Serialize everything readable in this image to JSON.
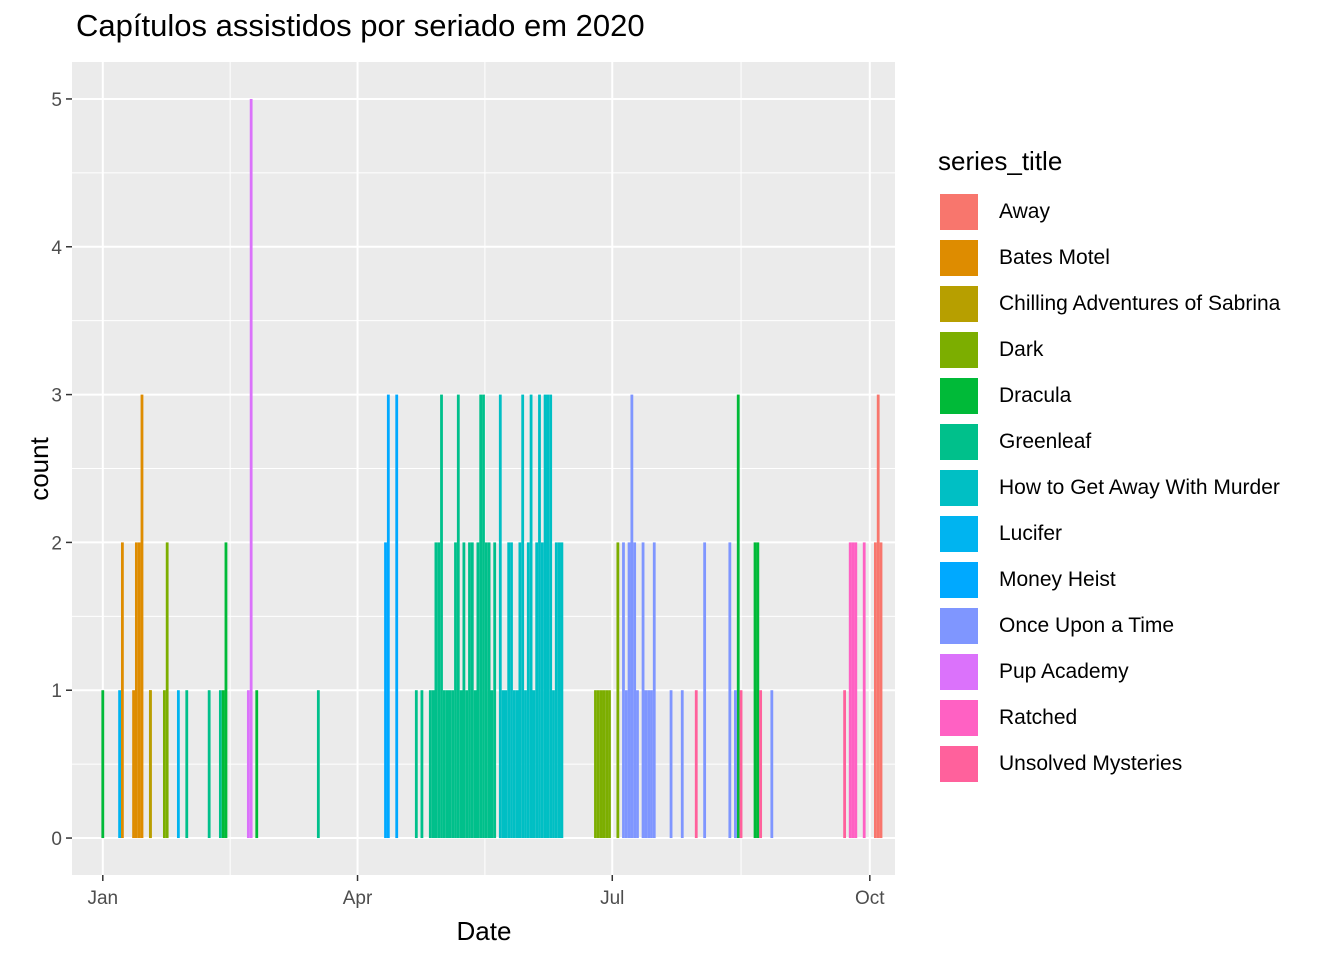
{
  "chart_data": {
    "type": "bar",
    "title": "Capítulos assistidos por seriado em 2020",
    "xlabel": "Date",
    "ylabel": "count",
    "legend_title": "series_title",
    "legend_position": "right",
    "grid": true,
    "xlim": [
      "2019-12-21",
      "2020-10-10"
    ],
    "ylim": [
      -0.25,
      5.25
    ],
    "x_ticks": [
      {
        "date": "2020-01-01",
        "label": "Jan"
      },
      {
        "date": "2020-04-01",
        "label": "Apr"
      },
      {
        "date": "2020-07-01",
        "label": "Jul"
      },
      {
        "date": "2020-10-01",
        "label": "Oct"
      }
    ],
    "y_ticks": [
      0,
      1,
      2,
      3,
      4,
      5
    ],
    "series": [
      {
        "name": "Away",
        "color": "#F8766D",
        "points": [
          [
            "2020-10-03",
            2
          ],
          [
            "2020-10-04",
            3
          ],
          [
            "2020-10-05",
            2
          ]
        ]
      },
      {
        "name": "Bates Motel",
        "color": "#DE8C00",
        "points": [
          [
            "2020-01-08",
            2
          ],
          [
            "2020-01-12",
            1
          ],
          [
            "2020-01-13",
            2
          ],
          [
            "2020-01-14",
            2
          ],
          [
            "2020-01-15",
            3
          ],
          [
            "2020-01-18",
            1
          ]
        ]
      },
      {
        "name": "Chilling Adventures of Sabrina",
        "color": "#B79F00",
        "points": [
          [
            "2020-01-18",
            1
          ]
        ]
      },
      {
        "name": "Dark",
        "color": "#7CAE00",
        "points": [
          [
            "2020-01-23",
            1
          ],
          [
            "2020-01-24",
            2
          ],
          [
            "2020-06-25",
            1
          ],
          [
            "2020-06-26",
            1
          ],
          [
            "2020-06-27",
            1
          ],
          [
            "2020-06-28",
            1
          ],
          [
            "2020-06-29",
            1
          ],
          [
            "2020-06-30",
            1
          ],
          [
            "2020-07-03",
            2
          ]
        ]
      },
      {
        "name": "Dracula",
        "color": "#00BA38",
        "points": [
          [
            "2020-01-01",
            1
          ],
          [
            "2020-02-13",
            1
          ],
          [
            "2020-02-14",
            2
          ],
          [
            "2020-02-25",
            1
          ],
          [
            "2020-08-15",
            3
          ],
          [
            "2020-08-21",
            2
          ],
          [
            "2020-08-22",
            2
          ]
        ]
      },
      {
        "name": "Greenleaf",
        "color": "#00C08B",
        "points": [
          [
            "2020-01-31",
            1
          ],
          [
            "2020-02-08",
            1
          ],
          [
            "2020-02-12",
            1
          ],
          [
            "2020-03-18",
            1
          ],
          [
            "2020-04-22",
            1
          ],
          [
            "2020-04-24",
            1
          ],
          [
            "2020-04-27",
            1
          ],
          [
            "2020-04-28",
            1
          ],
          [
            "2020-04-29",
            2
          ],
          [
            "2020-04-30",
            2
          ],
          [
            "2020-05-01",
            3
          ],
          [
            "2020-05-02",
            1
          ],
          [
            "2020-05-03",
            1
          ],
          [
            "2020-05-04",
            1
          ],
          [
            "2020-05-05",
            1
          ],
          [
            "2020-05-06",
            2
          ],
          [
            "2020-05-07",
            3
          ],
          [
            "2020-05-08",
            1
          ],
          [
            "2020-05-09",
            2
          ],
          [
            "2020-05-10",
            1
          ],
          [
            "2020-05-11",
            2
          ],
          [
            "2020-05-12",
            2
          ],
          [
            "2020-05-13",
            1
          ],
          [
            "2020-05-14",
            2
          ],
          [
            "2020-05-15",
            3
          ],
          [
            "2020-05-16",
            3
          ],
          [
            "2020-05-17",
            2
          ],
          [
            "2020-05-18",
            2
          ],
          [
            "2020-05-19",
            1
          ],
          [
            "2020-05-20",
            2
          ]
        ]
      },
      {
        "name": "How to Get Away With Murder",
        "color": "#00BFC4",
        "points": [
          [
            "2020-05-22",
            3
          ],
          [
            "2020-05-23",
            1
          ],
          [
            "2020-05-24",
            1
          ],
          [
            "2020-05-25",
            2
          ],
          [
            "2020-05-26",
            2
          ],
          [
            "2020-05-27",
            1
          ],
          [
            "2020-05-28",
            1
          ],
          [
            "2020-05-29",
            2
          ],
          [
            "2020-05-30",
            3
          ],
          [
            "2020-05-31",
            1
          ],
          [
            "2020-06-01",
            2
          ],
          [
            "2020-06-02",
            3
          ],
          [
            "2020-06-03",
            1
          ],
          [
            "2020-06-04",
            2
          ],
          [
            "2020-06-05",
            3
          ],
          [
            "2020-06-06",
            2
          ],
          [
            "2020-06-07",
            3
          ],
          [
            "2020-06-08",
            3
          ],
          [
            "2020-06-09",
            3
          ],
          [
            "2020-06-10",
            1
          ],
          [
            "2020-06-11",
            2
          ],
          [
            "2020-06-12",
            2
          ],
          [
            "2020-06-13",
            2
          ]
        ]
      },
      {
        "name": "Lucifer",
        "color": "#00B4F0",
        "points": [
          [
            "2020-01-07",
            1
          ],
          [
            "2020-01-28",
            1
          ]
        ]
      },
      {
        "name": "Money Heist",
        "color": "#00A9FF",
        "points": [
          [
            "2020-04-11",
            2
          ],
          [
            "2020-04-12",
            3
          ],
          [
            "2020-04-15",
            3
          ]
        ]
      },
      {
        "name": "Once Upon a Time",
        "color": "#7F96FF",
        "points": [
          [
            "2020-07-05",
            2
          ],
          [
            "2020-07-06",
            1
          ],
          [
            "2020-07-07",
            2
          ],
          [
            "2020-07-08",
            3
          ],
          [
            "2020-07-09",
            2
          ],
          [
            "2020-07-10",
            1
          ],
          [
            "2020-07-12",
            2
          ],
          [
            "2020-07-13",
            1
          ],
          [
            "2020-07-14",
            1
          ],
          [
            "2020-07-15",
            1
          ],
          [
            "2020-07-16",
            2
          ],
          [
            "2020-07-22",
            1
          ],
          [
            "2020-07-26",
            1
          ],
          [
            "2020-08-03",
            2
          ],
          [
            "2020-08-12",
            2
          ],
          [
            "2020-08-14",
            1
          ],
          [
            "2020-08-27",
            1
          ]
        ]
      },
      {
        "name": "Pup Academy",
        "color": "#DB72FB",
        "points": [
          [
            "2020-02-22",
            1
          ],
          [
            "2020-02-23",
            5
          ]
        ]
      },
      {
        "name": "Ratched",
        "color": "#FF61C3",
        "points": [
          [
            "2020-09-24",
            2
          ],
          [
            "2020-09-25",
            2
          ],
          [
            "2020-09-26",
            2
          ],
          [
            "2020-09-29",
            2
          ]
        ]
      },
      {
        "name": "Unsolved Mysteries",
        "color": "#FF619C",
        "points": [
          [
            "2020-07-31",
            1
          ],
          [
            "2020-08-16",
            1
          ],
          [
            "2020-08-23",
            1
          ],
          [
            "2020-09-22",
            1
          ]
        ]
      }
    ]
  }
}
